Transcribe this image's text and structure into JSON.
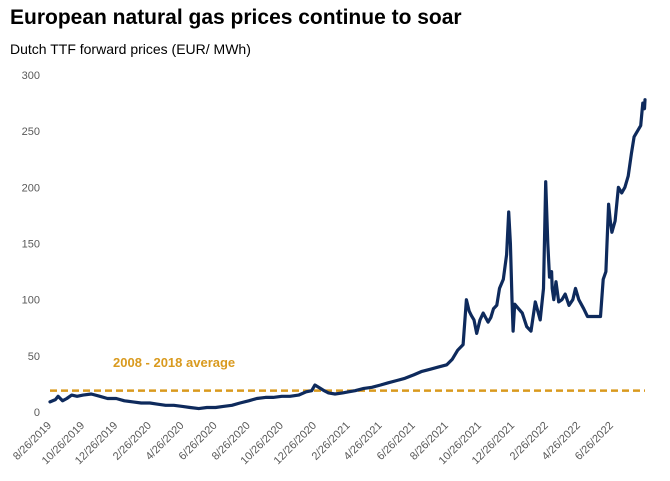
{
  "chart_data": {
    "type": "line",
    "title": "European natural gas prices continue to soar",
    "subtitle": "Dutch TTF forward prices (EUR/ MWh)",
    "xlabel": "",
    "ylabel": "",
    "ylim": [
      0,
      300
    ],
    "yticks": [
      0,
      50,
      100,
      150,
      200,
      250,
      300
    ],
    "x_tick_labels": [
      "8/26/2019",
      "10/26/2019",
      "12/26/2019",
      "2/26/2020",
      "4/26/2020",
      "6/26/2020",
      "8/26/2020",
      "10/26/2020",
      "12/26/2020",
      "2/26/2021",
      "4/26/2021",
      "6/26/2021",
      "8/26/2021",
      "10/26/2021",
      "12/26/2021",
      "2/26/2022",
      "4/26/2022",
      "6/26/2022"
    ],
    "grid": false,
    "legend": "none",
    "colors": {
      "series": "#0e2a5c",
      "average": "#d99a1e",
      "tick_text": "#595959"
    },
    "series": [
      {
        "x": [
          "2019-08-26",
          "2019-09-05",
          "2019-09-10",
          "2019-09-18",
          "2019-09-26",
          "2019-10-05",
          "2019-10-15",
          "2019-10-26",
          "2019-11-10",
          "2019-11-26",
          "2019-12-10",
          "2019-12-26",
          "2020-01-10",
          "2020-01-26",
          "2020-02-10",
          "2020-02-26",
          "2020-03-10",
          "2020-03-26",
          "2020-04-10",
          "2020-04-26",
          "2020-05-10",
          "2020-05-26",
          "2020-06-10",
          "2020-06-26",
          "2020-07-10",
          "2020-07-26",
          "2020-08-10",
          "2020-08-26",
          "2020-09-10",
          "2020-09-26",
          "2020-10-10",
          "2020-10-26",
          "2020-11-10",
          "2020-11-26",
          "2020-12-10",
          "2020-12-20",
          "2020-12-26",
          "2021-01-05",
          "2021-01-12",
          "2021-01-20",
          "2021-02-01",
          "2021-02-15",
          "2021-02-26",
          "2021-03-10",
          "2021-03-26",
          "2021-04-10",
          "2021-04-26",
          "2021-05-10",
          "2021-05-26",
          "2021-06-10",
          "2021-06-26",
          "2021-07-10",
          "2021-07-26",
          "2021-08-10",
          "2021-08-26",
          "2021-09-05",
          "2021-09-15",
          "2021-09-25",
          "2021-10-01",
          "2021-10-06",
          "2021-10-10",
          "2021-10-15",
          "2021-10-20",
          "2021-10-26",
          "2021-11-01",
          "2021-11-10",
          "2021-11-15",
          "2021-11-20",
          "2021-11-26",
          "2021-12-01",
          "2021-12-08",
          "2021-12-14",
          "2021-12-18",
          "2021-12-21",
          "2021-12-24",
          "2021-12-26",
          "2021-12-29",
          "2022-01-05",
          "2022-01-12",
          "2022-01-20",
          "2022-01-28",
          "2022-02-05",
          "2022-02-14",
          "2022-02-20",
          "2022-02-24",
          "2022-02-28",
          "2022-03-03",
          "2022-03-07",
          "2022-03-08",
          "2022-03-11",
          "2022-03-15",
          "2022-03-20",
          "2022-03-26",
          "2022-04-01",
          "2022-04-08",
          "2022-04-15",
          "2022-04-20",
          "2022-04-26",
          "2022-05-05",
          "2022-05-12",
          "2022-05-20",
          "2022-05-26",
          "2022-06-05",
          "2022-06-10",
          "2022-06-15",
          "2022-06-17",
          "2022-06-20",
          "2022-06-23",
          "2022-06-26",
          "2022-07-02",
          "2022-07-08",
          "2022-07-14",
          "2022-07-20",
          "2022-07-26",
          "2022-08-01",
          "2022-08-06",
          "2022-08-12",
          "2022-08-18",
          "2022-08-22",
          "2022-08-25",
          "2022-08-26"
        ],
        "values": [
          9,
          11,
          14,
          10,
          12,
          15,
          14,
          15,
          16,
          14,
          12,
          12,
          10,
          9,
          8,
          8,
          7,
          6,
          6,
          5,
          4,
          3,
          4,
          4,
          5,
          6,
          8,
          10,
          12,
          13,
          13,
          14,
          14,
          15,
          18,
          19,
          24,
          21,
          19,
          17,
          16,
          17,
          18,
          19,
          21,
          22,
          24,
          26,
          28,
          30,
          33,
          36,
          38,
          40,
          42,
          47,
          55,
          60,
          100,
          90,
          86,
          82,
          70,
          82,
          88,
          80,
          84,
          92,
          95,
          110,
          118,
          140,
          178,
          150,
          100,
          72,
          96,
          92,
          88,
          76,
          72,
          98,
          82,
          110,
          205,
          150,
          120,
          125,
          110,
          100,
          116,
          98,
          100,
          105,
          95,
          100,
          110,
          100,
          92,
          85,
          85,
          85,
          85,
          118,
          125,
          150,
          185,
          170,
          160,
          170,
          200,
          195,
          200,
          210,
          230,
          245,
          250,
          255,
          275,
          270,
          278
        ]
      }
    ],
    "reference_line": {
      "value": 19,
      "style": "dashed"
    },
    "annotation": {
      "text": "2008 - 2018 average"
    }
  }
}
